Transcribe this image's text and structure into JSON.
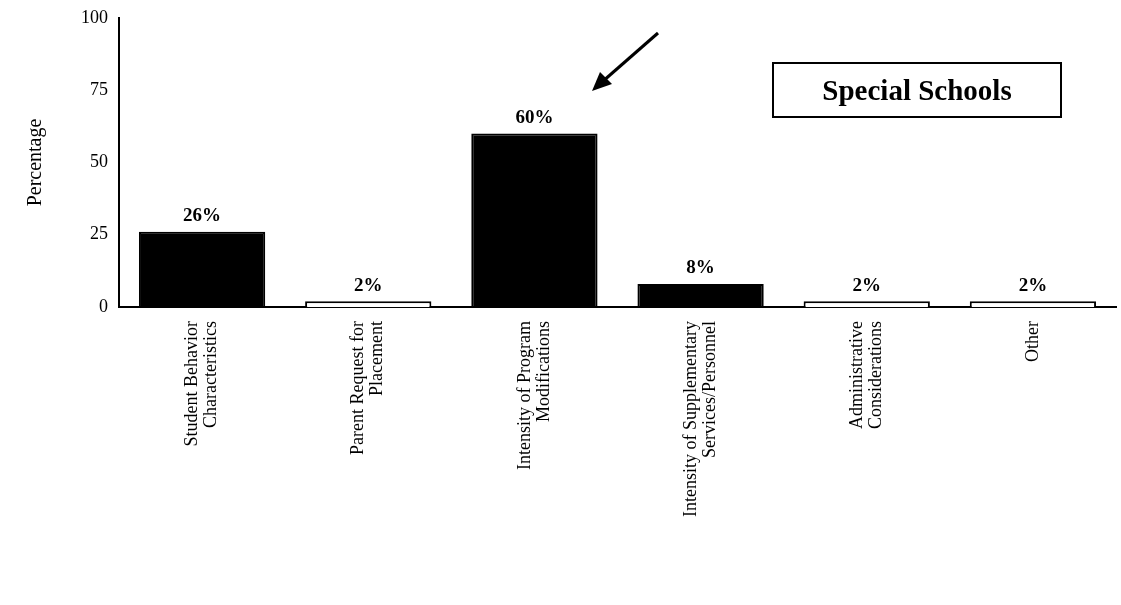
{
  "chart_data": {
    "type": "bar",
    "title": "Special Schools",
    "ylabel": "Percentage",
    "categories": [
      "Student Behavior\nCharacteristics",
      "Parent Request for\nPlacement",
      "Intensity of Program\nModifications",
      "Intensity of Supplementary\nServices/Personnel",
      "Administrative\nConsiderations",
      "Other"
    ],
    "values": [
      26,
      2,
      60,
      8,
      2,
      2
    ],
    "value_labels": [
      "26%",
      "2%",
      "60%",
      "8%",
      "2%",
      "2%"
    ],
    "colors": [
      "#000000",
      "#ffffff",
      "#000000",
      "#000000",
      "#ffffff",
      "#ffffff"
    ],
    "ylim": [
      0,
      100
    ],
    "yticks": [
      0,
      25,
      50,
      75,
      100
    ],
    "grid": false,
    "legend": false
  }
}
